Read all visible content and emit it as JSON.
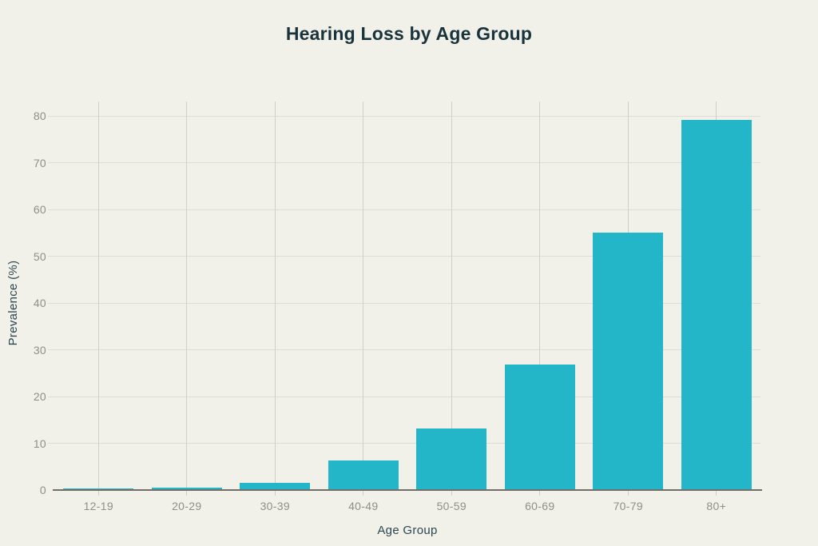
{
  "chart_data": {
    "type": "bar",
    "title": "Hearing Loss by Age Group",
    "xlabel": "Age Group",
    "ylabel": "Prevalence (%)",
    "categories": [
      "12-19",
      "20-29",
      "30-39",
      "40-49",
      "50-59",
      "60-69",
      "70-79",
      "80+"
    ],
    "values": [
      0.3,
      0.5,
      1.5,
      6.3,
      13.1,
      26.8,
      55.1,
      79.1
    ],
    "ylim": [
      0,
      80
    ],
    "yticks": [
      0,
      10,
      20,
      30,
      40,
      50,
      60,
      70,
      80
    ],
    "grid": "on",
    "legend": "none",
    "colors": {
      "background": "#f1f0e9",
      "bar": "#23b5c8",
      "title": "#18333c",
      "axis_label": "#2b4750",
      "tick_label": "#8f8e88",
      "grid_h": "#dddcd6",
      "grid_v": "#cfcec8",
      "axis_line": "#706f69"
    }
  }
}
